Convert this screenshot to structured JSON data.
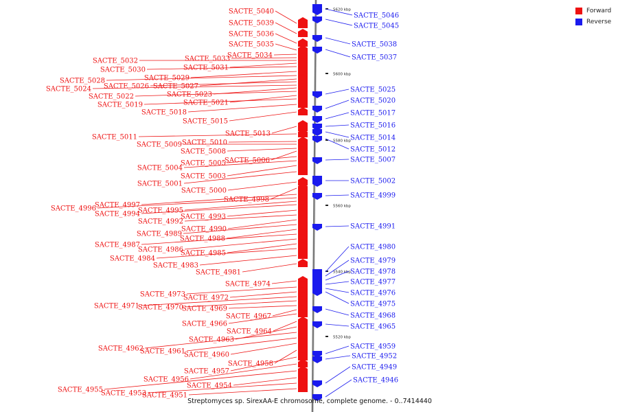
{
  "caption": "Streptomyces sp. SirexAA-E chromosome, complete genome. - 0..7414440",
  "legend": [
    {
      "label": "Forward",
      "color": "#ee1111"
    },
    {
      "label": "Reverse",
      "color": "#1a1aee"
    }
  ],
  "colors": {
    "forward": "#ee1111",
    "reverse": "#1a1aee",
    "backbone": "#8a8a8a"
  },
  "scale_ticks": [
    "5620 kbp",
    "5600 kbp",
    "5580 kbp",
    "5560 kbp",
    "5540 kbp",
    "5520 kbp"
  ],
  "forward_genes": [
    "SACTE_5040",
    "SACTE_5039",
    "SACTE_5036",
    "SACTE_5035",
    "SACTE_5034",
    "SACTE_5033",
    "SACTE_5032",
    "SACTE_5031",
    "SACTE_5030",
    "SACTE_5029",
    "SACTE_5028",
    "SACTE_5027",
    "SACTE_5026",
    "SACTE_5024",
    "SACTE_5023",
    "SACTE_5022",
    "SACTE_5021",
    "SACTE_5019",
    "SACTE_5018",
    "SACTE_5015",
    "SACTE_5013",
    "SACTE_5011",
    "SACTE_5010",
    "SACTE_5009",
    "SACTE_5008",
    "SACTE_5006",
    "SACTE_5005",
    "SACTE_5004",
    "SACTE_5003",
    "SACTE_5001",
    "SACTE_5000",
    "SACTE_4998",
    "SACTE_4997",
    "SACTE_4996",
    "SACTE_4995",
    "SACTE_4994",
    "SACTE_4993",
    "SACTE_4992",
    "SACTE_4990",
    "SACTE_4989",
    "SACTE_4988",
    "SACTE_4987",
    "SACTE_4986",
    "SACTE_4985",
    "SACTE_4984",
    "SACTE_4983",
    "SACTE_4981",
    "SACTE_4974",
    "SACTE_4973",
    "SACTE_4972",
    "SACTE_4971",
    "SACTE_4970",
    "SACTE_4969",
    "SACTE_4967",
    "SACTE_4966",
    "SACTE_4964",
    "SACTE_4963",
    "SACTE_4962",
    "SACTE_4961",
    "SACTE_4960",
    "SACTE_4958",
    "SACTE_4957",
    "SACTE_4956",
    "SACTE_4955",
    "SACTE_4954",
    "SACTE_4953",
    "SACTE_4951"
  ],
  "reverse_genes": [
    "SACTE_5046",
    "SACTE_5045",
    "SACTE_5038",
    "SACTE_5037",
    "SACTE_5025",
    "SACTE_5020",
    "SACTE_5017",
    "SACTE_5016",
    "SACTE_5014",
    "SACTE_5012",
    "SACTE_5007",
    "SACTE_5002",
    "SACTE_4999",
    "SACTE_4991",
    "SACTE_4980",
    "SACTE_4979",
    "SACTE_4978",
    "SACTE_4977",
    "SACTE_4976",
    "SACTE_4975",
    "SACTE_4968",
    "SACTE_4965",
    "SACTE_4959",
    "SACTE_4952",
    "SACTE_4949",
    "SACTE_4946"
  ]
}
